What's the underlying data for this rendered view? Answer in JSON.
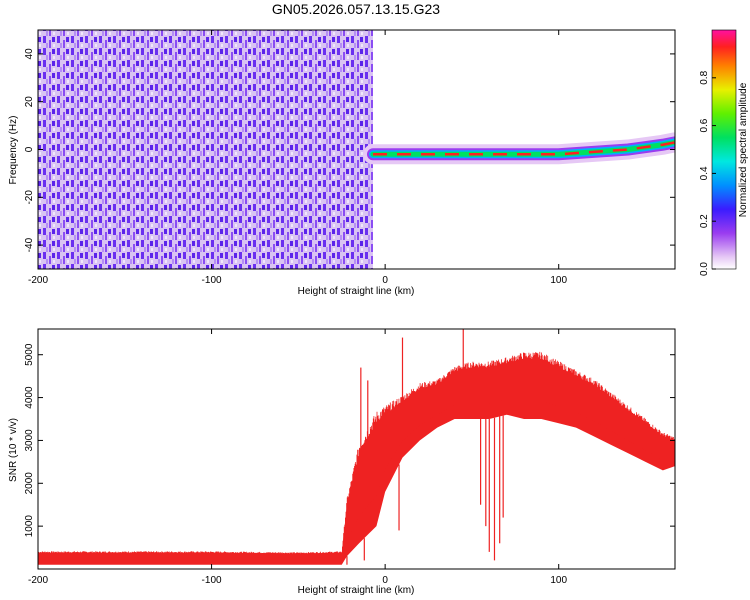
{
  "title": "GN05.2026.057.13.15.G23",
  "chart_data": [
    {
      "type": "heatmap",
      "name": "spectrogram",
      "xlabel": "Height of straight line (km)",
      "ylabel": "Frequency (Hz)",
      "xlim": [
        -200,
        167
      ],
      "ylim": [
        -50,
        50
      ],
      "xticks": [
        -200,
        -100,
        0,
        100
      ],
      "yticks": [
        -40,
        -20,
        0,
        20,
        40
      ],
      "noise_region_x": [
        -200,
        -7
      ],
      "track": {
        "x": [
          -7,
          0,
          20,
          40,
          60,
          80,
          100,
          120,
          140,
          160,
          167
        ],
        "freq": [
          -2,
          -2,
          -2,
          -2,
          -2,
          -2,
          -2,
          -1,
          0,
          2,
          3
        ]
      },
      "colorbar": {
        "label": "Normalized spectral amplitude",
        "ticks": [
          0.0,
          0.2,
          0.4,
          0.6,
          0.8
        ],
        "range": [
          0,
          1
        ]
      }
    },
    {
      "type": "line",
      "name": "snr",
      "series_name": "SNR",
      "color": "#ee2222",
      "xlabel": "Height of straight line (km)",
      "ylabel": "SNR (10 * v/v)",
      "xlim": [
        -200,
        167
      ],
      "ylim": [
        0,
        5600
      ],
      "xticks": [
        -200,
        -100,
        0,
        100
      ],
      "yticks": [
        1000,
        2000,
        3000,
        4000,
        5000
      ],
      "envelope": {
        "x": [
          -200,
          -150,
          -100,
          -50,
          -25,
          -22,
          -15,
          -5,
          0,
          10,
          20,
          30,
          40,
          50,
          60,
          70,
          80,
          90,
          100,
          110,
          120,
          130,
          140,
          150,
          160,
          167
        ],
        "low": [
          100,
          100,
          100,
          100,
          100,
          300,
          600,
          1000,
          1800,
          2600,
          3000,
          3300,
          3500,
          3500,
          3500,
          3600,
          3500,
          3500,
          3400,
          3300,
          3100,
          2900,
          2700,
          2500,
          2300,
          2400
        ],
        "high": [
          380,
          380,
          380,
          360,
          380,
          1500,
          2700,
          3400,
          3600,
          3900,
          4200,
          4300,
          4600,
          4700,
          4700,
          4800,
          4900,
          4900,
          4700,
          4500,
          4300,
          4000,
          3700,
          3400,
          3100,
          3000
        ]
      },
      "spikes": [
        {
          "x": -14,
          "y": 4700
        },
        {
          "x": -10,
          "y": 4400
        },
        {
          "x": 10,
          "y": 5400
        },
        {
          "x": 45,
          "y": 5600
        },
        {
          "x": 62,
          "y": 4500
        }
      ],
      "dips": [
        {
          "x": -22,
          "y": 100
        },
        {
          "x": -12,
          "y": 200
        },
        {
          "x": 8,
          "y": 900
        },
        {
          "x": 55,
          "y": 1500
        },
        {
          "x": 58,
          "y": 1000
        },
        {
          "x": 60,
          "y": 400
        },
        {
          "x": 63,
          "y": 200
        },
        {
          "x": 66,
          "y": 600
        },
        {
          "x": 68,
          "y": 1200
        }
      ]
    }
  ]
}
